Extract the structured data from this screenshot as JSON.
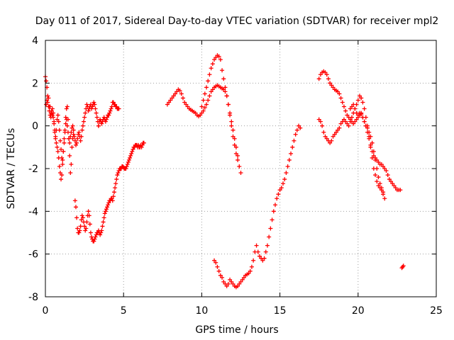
{
  "chart_data": {
    "type": "scatter",
    "title": "Day 011 of 2017, Sidereal Day-to-day VTEC variation (SDTVAR) for receiver mpl2",
    "xlabel": "GPS time / hours",
    "ylabel": "SDTVAR / TECUs",
    "xlim": [
      0,
      25
    ],
    "ylim": [
      -8,
      4
    ],
    "xticks": [
      "0",
      "5",
      "10",
      "15",
      "20",
      "25"
    ],
    "yticks": [
      "-8",
      "-6",
      "-4",
      "-2",
      "0",
      "2",
      "4"
    ],
    "grid": true,
    "marker": "plus",
    "color": "#ff0000",
    "series": [
      {
        "x": [
          0.0,
          0.05,
          0.1,
          0.15,
          0.2,
          0.25,
          0.3,
          0.35,
          0.4,
          0.45,
          0.5,
          0.55,
          0.6,
          0.65,
          0.7,
          0.75,
          0.8,
          0.85,
          0.9,
          0.95,
          1.0,
          1.05,
          1.1,
          1.15,
          1.2,
          1.25,
          1.3,
          1.35,
          1.4,
          1.45,
          1.5,
          1.55,
          1.6,
          1.65,
          1.7,
          1.75,
          1.8,
          1.85,
          1.9,
          1.95,
          2.0,
          2.05,
          2.1,
          2.15,
          2.2,
          2.25,
          2.3,
          2.35,
          2.4,
          2.45,
          2.5,
          2.55,
          2.6,
          2.65,
          2.7,
          2.75,
          2.8,
          2.85,
          2.9,
          2.95,
          3.0,
          3.05,
          3.1,
          3.15,
          3.2,
          3.25,
          3.3,
          3.35,
          3.4
        ],
        "y": [
          2.3,
          2.1,
          1.8,
          1.4,
          1.3,
          0.9,
          0.9,
          0.6,
          0.7,
          0.5,
          0.4,
          0.1,
          -0.2,
          -0.5,
          -0.8,
          -1.0,
          -1.2,
          -1.5,
          -1.9,
          -2.2,
          -2.5,
          -2.3,
          -1.8,
          -1.2,
          -0.8,
          -0.3,
          0.1,
          0.3,
          0.0,
          -0.3,
          -0.6,
          -0.8,
          -0.5,
          -0.3,
          -0.1,
          0.0,
          -0.2,
          -0.5,
          -0.7,
          -0.9,
          -0.8,
          -0.6,
          -0.4,
          -0.3,
          -0.5,
          -0.7,
          -0.5,
          -0.2,
          0.0,
          0.2,
          0.4,
          0.6,
          0.8,
          1.0,
          0.9,
          0.7,
          0.8,
          0.9,
          1.0,
          0.8,
          0.9,
          1.0,
          1.1,
          1.0,
          0.8,
          0.6,
          0.4,
          0.2,
          0.0
        ]
      },
      {
        "x": [
          0.05,
          0.1,
          0.15,
          0.2,
          0.25,
          0.3,
          0.35,
          0.4,
          0.45,
          0.5,
          0.55,
          0.6,
          0.65,
          0.7,
          0.75,
          0.8,
          0.85,
          0.9,
          0.95,
          1.0,
          1.05,
          1.1,
          1.15,
          1.2,
          1.25,
          1.3,
          1.35,
          1.4,
          1.45,
          1.5,
          1.55,
          1.6,
          1.65,
          1.7,
          1.75,
          1.8
        ],
        "y": [
          1.0,
          1.2,
          1.1,
          0.9,
          0.7,
          0.5,
          0.4,
          0.6,
          0.8,
          0.6,
          0.2,
          -0.3,
          -0.6,
          -0.2,
          0.3,
          0.5,
          0.2,
          -0.2,
          -0.7,
          -1.1,
          -1.5,
          -1.6,
          -1.2,
          -0.6,
          -0.2,
          0.4,
          0.8,
          0.9,
          0.3,
          -0.6,
          -1.4,
          -2.2,
          -1.8,
          -1.0,
          -0.6,
          -0.4
        ]
      },
      {
        "x": [
          3.4,
          3.45,
          3.5,
          3.55,
          3.6,
          3.65,
          3.7,
          3.75,
          3.8,
          3.85,
          3.9,
          3.95,
          4.0,
          4.05,
          4.1,
          4.15,
          4.2,
          4.25,
          4.3,
          4.35,
          4.4,
          4.45,
          4.5,
          4.55,
          4.6,
          4.65,
          4.7
        ],
        "y": [
          0.0,
          0.2,
          0.3,
          0.2,
          0.1,
          0.2,
          0.3,
          0.4,
          0.3,
          0.2,
          0.3,
          0.4,
          0.5,
          0.5,
          0.6,
          0.7,
          0.8,
          0.9,
          1.1,
          1.1,
          1.0,
          1.0,
          0.9,
          0.9,
          0.8,
          0.8,
          0.8
        ]
      },
      {
        "x": [
          1.9,
          1.95,
          2.0,
          2.05,
          2.1,
          2.15,
          2.2,
          2.25,
          2.3,
          2.35,
          2.4,
          2.45,
          2.5,
          2.55,
          2.6,
          2.65,
          2.7,
          2.75,
          2.8,
          2.85,
          2.9,
          2.95,
          3.0,
          3.05,
          3.1,
          3.15,
          3.2,
          3.25,
          3.3,
          3.35,
          3.4,
          3.45,
          3.5,
          3.55,
          3.6,
          3.65,
          3.7,
          3.75,
          3.8,
          3.85,
          3.9,
          3.95,
          4.0,
          4.05,
          4.1,
          4.15,
          4.2,
          4.25,
          4.3,
          4.35,
          4.4,
          4.45,
          4.5,
          4.55,
          4.6,
          4.65,
          4.7,
          4.75,
          4.8,
          4.85,
          4.9,
          4.95,
          5.0,
          5.05,
          5.1,
          5.15,
          5.2,
          5.25,
          5.3,
          5.35,
          5.4,
          5.45,
          5.5,
          5.55,
          5.6,
          5.65,
          5.7,
          5.75,
          5.8,
          5.85,
          5.9,
          5.95,
          6.0,
          6.05,
          6.1,
          6.15,
          6.2,
          6.25,
          6.3
        ],
        "y": [
          -3.5,
          -3.8,
          -4.3,
          -4.8,
          -5.0,
          -5.0,
          -4.9,
          -4.7,
          -4.4,
          -4.2,
          -4.3,
          -4.5,
          -4.7,
          -4.9,
          -4.8,
          -4.5,
          -4.2,
          -4.0,
          -4.2,
          -4.6,
          -5.0,
          -5.2,
          -5.3,
          -5.4,
          -5.4,
          -5.3,
          -5.2,
          -5.1,
          -5.0,
          -5.0,
          -4.9,
          -5.0,
          -5.1,
          -5.0,
          -4.9,
          -4.7,
          -4.5,
          -4.3,
          -4.1,
          -4.0,
          -3.9,
          -3.8,
          -3.7,
          -3.6,
          -3.5,
          -3.5,
          -3.4,
          -3.4,
          -3.5,
          -3.3,
          -3.1,
          -2.9,
          -2.7,
          -2.5,
          -2.3,
          -2.2,
          -2.1,
          -2.0,
          -2.0,
          -2.0,
          -1.9,
          -1.9,
          -1.95,
          -2.0,
          -2.0,
          -2.0,
          -1.9,
          -1.8,
          -1.7,
          -1.6,
          -1.5,
          -1.4,
          -1.3,
          -1.2,
          -1.1,
          -1.0,
          -1.0,
          -0.9,
          -0.9,
          -0.9,
          -1.0,
          -0.9,
          -1.0,
          -1.0,
          -0.9,
          -1.0,
          -0.9,
          -0.8,
          -0.8
        ]
      },
      {
        "x": [
          7.8,
          7.9,
          8.0,
          8.1,
          8.2,
          8.3,
          8.4,
          8.5,
          8.6,
          8.7,
          8.8,
          8.9,
          9.0,
          9.1,
          9.2,
          9.3,
          9.4,
          9.5,
          9.6,
          9.7,
          9.8,
          9.9,
          10.0,
          10.1,
          10.2,
          10.3,
          10.4,
          10.5,
          10.6,
          10.7,
          10.8,
          10.9,
          11.0,
          11.1,
          11.2,
          11.3,
          11.4,
          11.5,
          11.6,
          11.7,
          11.8,
          11.9,
          12.0,
          12.1,
          12.2,
          12.3,
          12.4,
          12.5
        ],
        "y": [
          1.0,
          1.1,
          1.2,
          1.3,
          1.4,
          1.5,
          1.6,
          1.7,
          1.65,
          1.5,
          1.3,
          1.1,
          1.0,
          0.9,
          0.8,
          0.75,
          0.7,
          0.65,
          0.6,
          0.5,
          0.45,
          0.5,
          0.6,
          0.7,
          0.85,
          1.0,
          1.2,
          1.4,
          1.6,
          1.7,
          1.8,
          1.85,
          1.9,
          1.85,
          1.8,
          1.75,
          1.7,
          1.6,
          1.4,
          1.0,
          0.5,
          0.0,
          -0.5,
          -0.9,
          -1.3,
          -1.6,
          -1.9,
          -2.2
        ]
      },
      {
        "x": [
          10.0,
          10.1,
          10.2,
          10.3,
          10.4,
          10.5,
          10.6,
          10.7,
          10.8,
          10.9,
          11.0,
          11.1,
          11.2,
          11.3,
          11.4,
          11.5,
          11.6,
          11.7,
          11.8,
          11.9,
          12.0,
          12.1,
          12.2,
          12.3
        ],
        "y": [
          0.9,
          1.2,
          1.5,
          1.8,
          2.1,
          2.4,
          2.7,
          2.9,
          3.1,
          3.2,
          3.3,
          3.25,
          3.1,
          2.6,
          2.2,
          1.8,
          1.4,
          1.0,
          0.6,
          0.2,
          -0.2,
          -0.6,
          -1.0,
          -1.4
        ]
      },
      {
        "x": [
          10.8,
          10.9,
          11.0,
          11.1,
          11.2,
          11.3,
          11.4,
          11.5,
          11.6,
          11.7,
          11.8,
          11.9,
          12.0,
          12.1,
          12.2,
          12.3,
          12.4,
          12.5,
          12.6,
          12.7,
          12.8,
          12.9,
          13.0,
          13.1,
          13.2,
          13.3,
          13.4,
          13.5,
          13.6,
          13.7,
          13.8,
          13.9,
          14.0,
          14.1,
          14.2,
          14.3,
          14.4,
          14.5,
          14.6,
          14.7,
          14.8,
          14.9,
          15.0,
          15.1,
          15.2,
          15.3,
          15.4,
          15.5,
          15.6,
          15.7,
          15.8,
          15.9,
          16.0,
          16.1,
          16.2,
          16.3
        ],
        "y": [
          -6.3,
          -6.4,
          -6.6,
          -6.8,
          -7.0,
          -7.1,
          -7.3,
          -7.4,
          -7.5,
          -7.4,
          -7.2,
          -7.3,
          -7.4,
          -7.5,
          -7.55,
          -7.5,
          -7.4,
          -7.3,
          -7.2,
          -7.1,
          -7.0,
          -6.95,
          -6.9,
          -6.8,
          -6.6,
          -6.3,
          -5.9,
          -5.6,
          -5.9,
          -6.1,
          -6.2,
          -6.3,
          -6.2,
          -5.9,
          -5.6,
          -5.2,
          -4.8,
          -4.4,
          -4.0,
          -3.7,
          -3.4,
          -3.2,
          -3.0,
          -2.9,
          -2.7,
          -2.5,
          -2.2,
          -1.9,
          -1.6,
          -1.3,
          -1.0,
          -0.7,
          -0.4,
          -0.2,
          0.0,
          -0.1
        ]
      },
      {
        "x": [
          17.5,
          17.6,
          17.7,
          17.8,
          17.9,
          18.0,
          18.1,
          18.2,
          18.3,
          18.4,
          18.5,
          18.6,
          18.7,
          18.8,
          18.9,
          19.0,
          19.1,
          19.2,
          19.3,
          19.4,
          19.5,
          19.6,
          19.7,
          19.8,
          19.9,
          20.0,
          20.1,
          20.2,
          20.3,
          20.4,
          20.5,
          20.6,
          20.7,
          20.8,
          20.9,
          21.0,
          21.1,
          21.2,
          21.3,
          21.4,
          21.5,
          21.6,
          21.7,
          21.8,
          21.9,
          22.0,
          22.1,
          22.2,
          22.3,
          22.4,
          22.5,
          22.6,
          22.7
        ],
        "y": [
          2.2,
          2.4,
          2.5,
          2.55,
          2.5,
          2.4,
          2.2,
          2.0,
          1.9,
          1.8,
          1.7,
          1.65,
          1.6,
          1.5,
          1.3,
          1.1,
          0.9,
          0.7,
          0.5,
          0.4,
          0.3,
          0.2,
          0.1,
          0.2,
          0.3,
          0.5,
          0.6,
          0.55,
          0.4,
          0.2,
          0.0,
          -0.3,
          -0.6,
          -0.9,
          -1.2,
          -1.4,
          -1.5,
          -1.6,
          -1.7,
          -1.8,
          -1.8,
          -1.9,
          -2.0,
          -2.1,
          -2.3,
          -2.5,
          -2.6,
          -2.7,
          -2.8,
          -2.9,
          -3.0,
          -3.0,
          -3.0
        ]
      },
      {
        "x": [
          17.5,
          17.6,
          17.7,
          17.8,
          17.9,
          18.0,
          18.1,
          18.2,
          18.3,
          18.4,
          18.5,
          18.6,
          18.7,
          18.8,
          18.9,
          19.0,
          19.1,
          19.2,
          19.3,
          19.4,
          19.5,
          19.6,
          19.7,
          19.8,
          19.9,
          20.0,
          20.1,
          20.2,
          20.3,
          20.4,
          20.5,
          20.6,
          20.7,
          20.8,
          20.9,
          21.0,
          21.1,
          21.2,
          21.3,
          21.4,
          21.5,
          21.6,
          21.7
        ],
        "y": [
          0.3,
          0.2,
          0.0,
          -0.3,
          -0.5,
          -0.6,
          -0.7,
          -0.8,
          -0.7,
          -0.5,
          -0.4,
          -0.3,
          -0.2,
          -0.1,
          0.1,
          0.2,
          0.3,
          0.2,
          0.1,
          0.0,
          0.2,
          0.4,
          0.6,
          0.8,
          1.0,
          1.2,
          1.4,
          1.3,
          1.1,
          0.8,
          0.4,
          0.0,
          -0.5,
          -1.0,
          -1.5,
          -2.0,
          -2.3,
          -2.6,
          -2.8,
          -2.9,
          -3.0,
          -3.2,
          -3.4
        ]
      },
      {
        "x": [
          19.5,
          19.6,
          19.7,
          19.8,
          19.9,
          20.0,
          20.1,
          20.2,
          20.3,
          20.4,
          20.5,
          20.6,
          20.7,
          20.8,
          20.9,
          21.0,
          21.1,
          21.2,
          21.3,
          21.4,
          21.5,
          21.6
        ],
        "y": [
          0.8,
          0.9,
          1.0,
          0.8,
          0.6,
          0.4,
          0.5,
          0.6,
          0.4,
          0.2,
          0.0,
          -0.1,
          -0.3,
          -0.5,
          -0.8,
          -1.2,
          -1.6,
          -2.0,
          -2.4,
          -2.7,
          -2.9,
          -3.1
        ]
      },
      {
        "x": [
          22.8,
          22.85,
          22.9
        ],
        "y": [
          -6.65,
          -6.6,
          -6.55
        ]
      }
    ]
  }
}
